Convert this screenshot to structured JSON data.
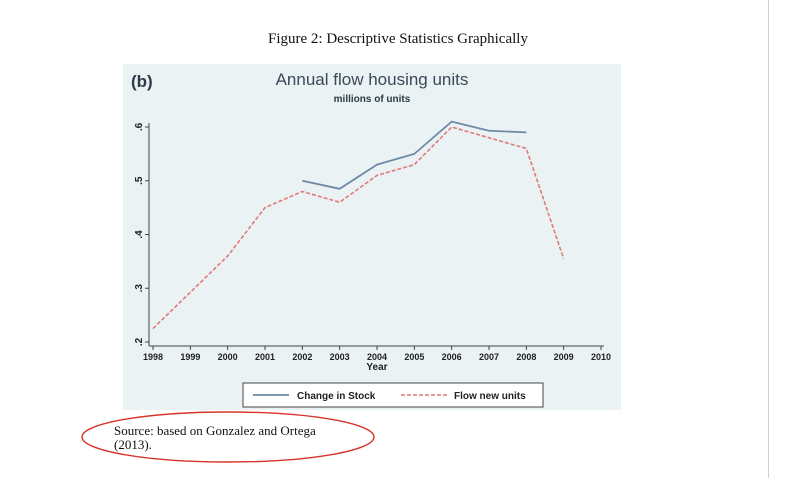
{
  "figure": {
    "caption": "Figure 2: Descriptive Statistics Graphically",
    "source": "Source: based on Gonzalez and Ortega (2013)."
  },
  "colors": {
    "panel_bg": "#eaf2f3",
    "stock_line": "#6f8aa5",
    "flow_line": "#e07a7a",
    "annotation": "#d9342b"
  },
  "chart_data": {
    "type": "line",
    "panel_label": "(b)",
    "title": "Annual flow housing units",
    "subtitle": "millions of units",
    "xlabel": "Year",
    "ylabel": "",
    "x": [
      1998,
      1999,
      2000,
      2001,
      2002,
      2003,
      2004,
      2005,
      2006,
      2007,
      2008,
      2009,
      2010
    ],
    "xlim": [
      1998,
      2010
    ],
    "ylim": [
      0.2,
      0.6
    ],
    "yticks": [
      0.2,
      0.3,
      0.4,
      0.5,
      0.6
    ],
    "ytick_labels": [
      ".2",
      ".3",
      ".4",
      ".5",
      ".6"
    ],
    "grid": false,
    "legend_position": "bottom",
    "series": [
      {
        "name": "Change in Stock",
        "style": "solid",
        "x": [
          2002,
          2003,
          2004,
          2005,
          2006,
          2007,
          2008
        ],
        "values": [
          0.5,
          0.485,
          0.53,
          0.55,
          0.61,
          0.593,
          0.59
        ]
      },
      {
        "name": "Flow new units",
        "style": "dashed",
        "x": [
          1998,
          2000,
          2001,
          2002,
          2003,
          2004,
          2005,
          2006,
          2007,
          2008,
          2009
        ],
        "values": [
          0.225,
          0.36,
          0.45,
          0.48,
          0.46,
          0.51,
          0.53,
          0.6,
          0.58,
          0.56,
          0.355
        ]
      }
    ]
  }
}
